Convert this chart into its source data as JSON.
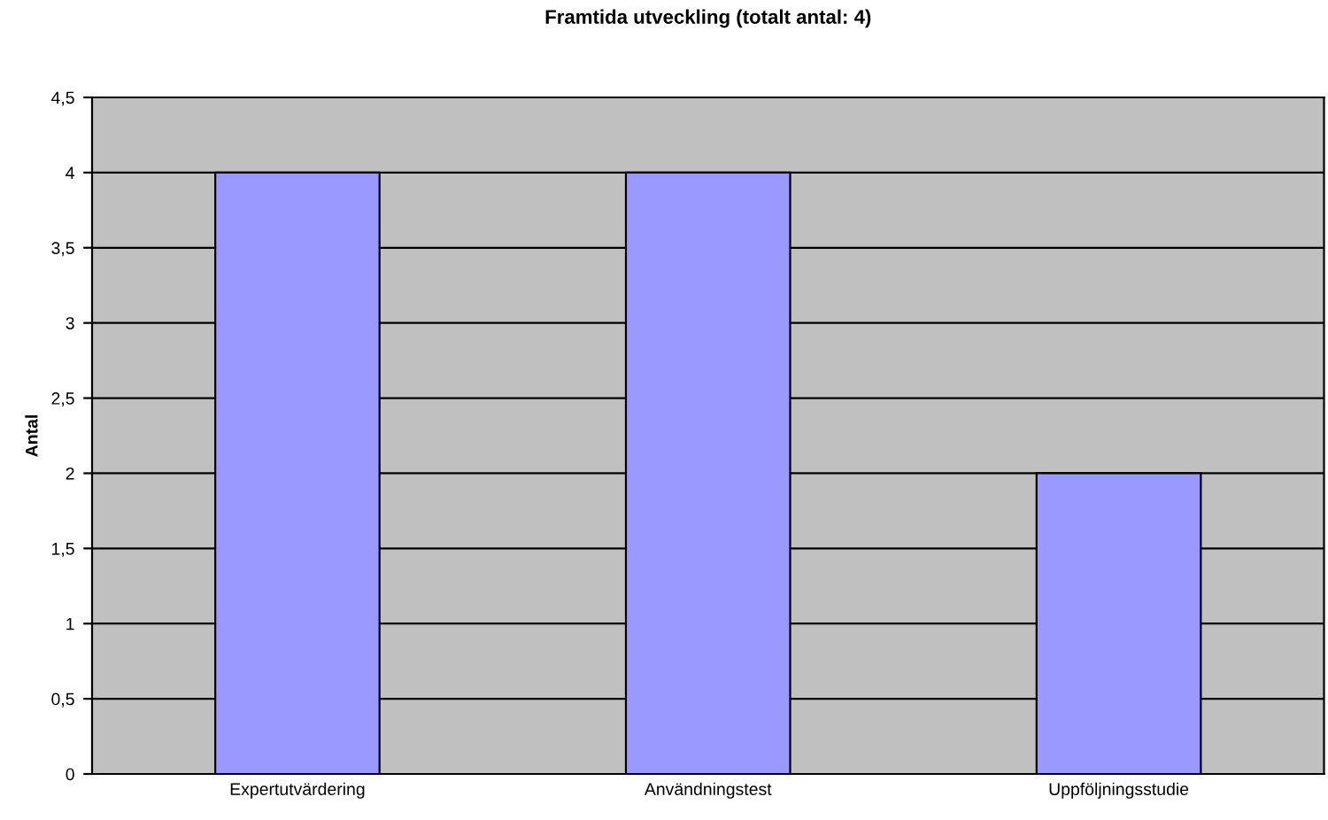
{
  "chart_data": {
    "type": "bar",
    "title": "Framtida utveckling (totalt antal: 4)",
    "ylabel": "Antal",
    "categories": [
      "Expertutvärdering",
      "Användningstest",
      "Uppföljningsstudie"
    ],
    "values": [
      4,
      4,
      2
    ],
    "color": "#9999ff",
    "ylim": [
      0,
      4.5
    ],
    "yticks": [
      0,
      {
        "value": 0.5,
        "label": "0,5"
      },
      1,
      {
        "value": 1.5,
        "label": "1,5"
      },
      2,
      {
        "value": 2.5,
        "label": "2,5"
      },
      3,
      {
        "value": 3.5,
        "label": "3,5"
      },
      4,
      {
        "value": 4.5,
        "label": "4,5"
      }
    ],
    "grid": "y"
  }
}
